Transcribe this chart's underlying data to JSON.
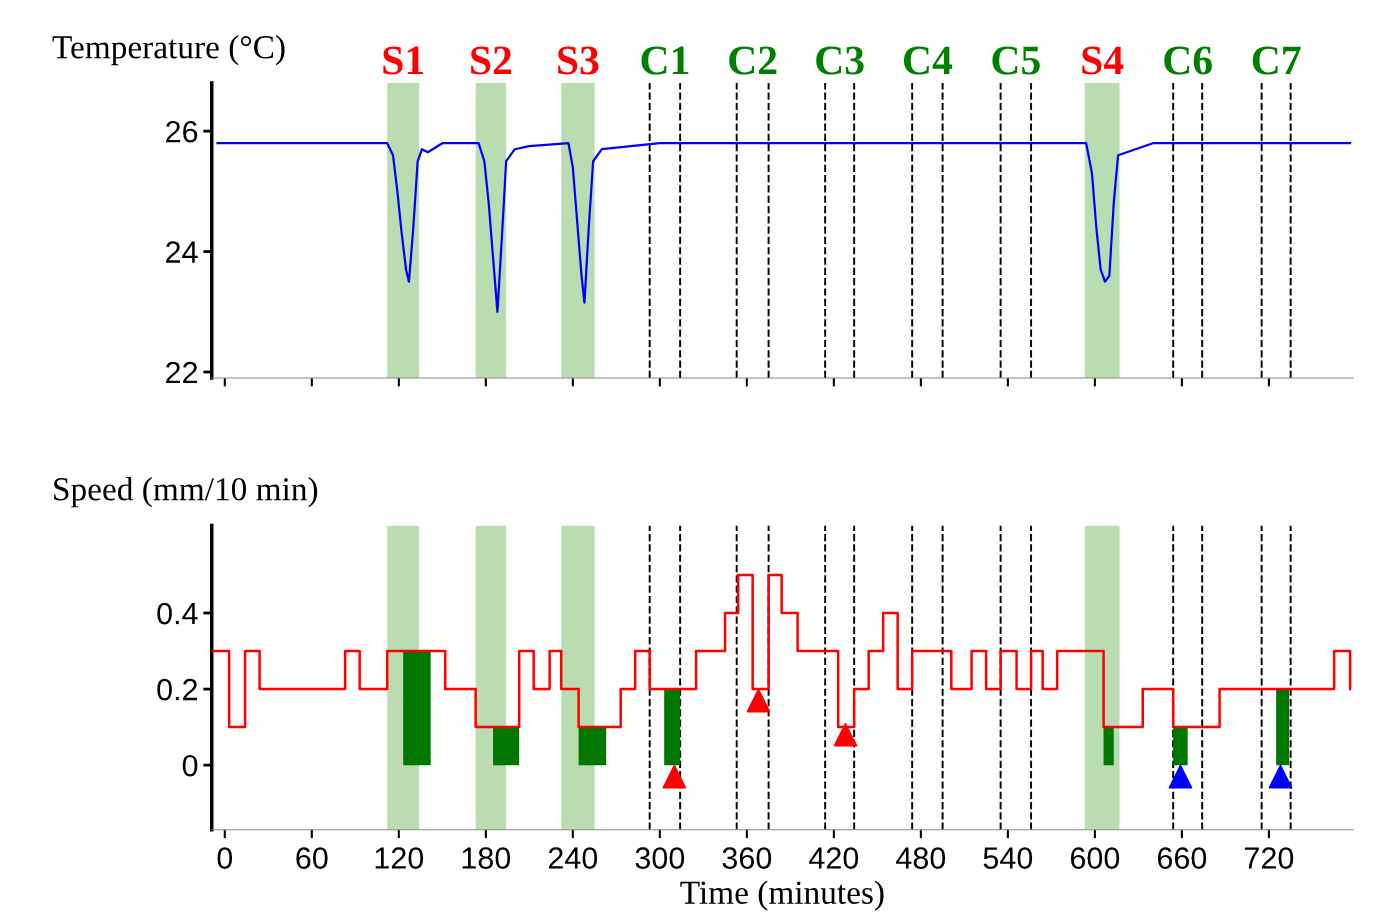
{
  "chart_data": [
    {
      "type": "line",
      "ylabel": "Temperature (°C)",
      "xlim": [
        -9,
        778
      ],
      "xticks": [
        0,
        60,
        120,
        180,
        240,
        300,
        360,
        420,
        480,
        540,
        600,
        660,
        720
      ],
      "ylim": [
        21.9,
        26.8
      ],
      "yticks": [
        22,
        24,
        26
      ],
      "tick_labels": "y",
      "legend": false,
      "series": [
        {
          "color": "#0000ff",
          "x": [
            -5,
            112,
            116,
            119,
            122,
            125,
            127,
            130,
            133,
            136,
            140,
            150,
            175,
            179,
            182,
            185,
            188,
            191,
            194,
            200,
            210,
            237,
            240,
            243,
            246,
            248,
            251,
            254,
            260,
            280,
            300,
            400,
            594,
            598,
            601,
            604,
            607,
            610,
            613,
            616,
            622,
            640,
            776
          ],
          "values": [
            25.8,
            25.8,
            25.6,
            25.0,
            24.3,
            23.7,
            23.5,
            24.4,
            25.5,
            25.7,
            25.65,
            25.8,
            25.8,
            25.5,
            24.8,
            23.9,
            23.0,
            24.2,
            25.5,
            25.7,
            25.75,
            25.8,
            25.4,
            24.5,
            23.6,
            23.15,
            24.4,
            25.5,
            25.7,
            25.75,
            25.8,
            25.8,
            25.8,
            25.3,
            24.4,
            23.7,
            23.5,
            23.6,
            24.8,
            25.6,
            25.65,
            25.8,
            25.8
          ]
        }
      ],
      "bands": [
        {
          "axis": "x",
          "from": 112,
          "to": 134,
          "label": "S1",
          "color": "#b9ddb1"
        },
        {
          "axis": "x",
          "from": 173,
          "to": 194,
          "label": "S2",
          "color": "#b9ddb1"
        },
        {
          "axis": "x",
          "from": 232,
          "to": 255,
          "label": "S3",
          "color": "#b9ddb1"
        },
        {
          "axis": "x",
          "from": 593,
          "to": 617,
          "label": "S4",
          "color": "#b9ddb1"
        }
      ],
      "ref_lines": [
        {
          "axis": "x",
          "value": 293,
          "label": "C1",
          "color": "#000000",
          "line_style": "dashed"
        },
        {
          "axis": "x",
          "value": 314,
          "color": "#000000",
          "line_style": "dashed"
        },
        {
          "axis": "x",
          "value": 353,
          "label": "C2",
          "color": "#000000",
          "line_style": "dashed"
        },
        {
          "axis": "x",
          "value": 375,
          "color": "#000000",
          "line_style": "dashed"
        },
        {
          "axis": "x",
          "value": 414,
          "label": "C3",
          "color": "#000000",
          "line_style": "dashed"
        },
        {
          "axis": "x",
          "value": 434,
          "color": "#000000",
          "line_style": "dashed"
        },
        {
          "axis": "x",
          "value": 474,
          "label": "C4",
          "color": "#000000",
          "line_style": "dashed"
        },
        {
          "axis": "x",
          "value": 495,
          "color": "#000000",
          "line_style": "dashed"
        },
        {
          "axis": "x",
          "value": 535,
          "label": "C5",
          "color": "#000000",
          "line_style": "dashed"
        },
        {
          "axis": "x",
          "value": 556,
          "color": "#000000",
          "line_style": "dashed"
        },
        {
          "axis": "x",
          "value": 654,
          "label": "C6",
          "color": "#000000",
          "line_style": "dashed"
        },
        {
          "axis": "x",
          "value": 674,
          "color": "#000000",
          "line_style": "dashed"
        },
        {
          "axis": "x",
          "value": 715,
          "label": "C7",
          "color": "#000000",
          "line_style": "dashed"
        },
        {
          "axis": "x",
          "value": 735,
          "color": "#000000",
          "line_style": "dashed"
        }
      ]
    },
    {
      "type": "step",
      "ylabel": "Speed (mm/10 min)",
      "xlabel": "Time (minutes)",
      "xlim": [
        -9,
        778
      ],
      "ylim": [
        -0.17,
        0.63
      ],
      "yticks": [
        0,
        0.2,
        0.4
      ],
      "xticks": [
        0,
        60,
        120,
        180,
        240,
        300,
        360,
        420,
        480,
        540,
        600,
        660,
        720
      ],
      "legend": false,
      "series": [
        {
          "color": "#ff0000",
          "x": [
            -9,
            3,
            14,
            24,
            83,
            93,
            112,
            152,
            173,
            185,
            203,
            213,
            224,
            232,
            244,
            263,
            273,
            283,
            293,
            325,
            345,
            354,
            364,
            375,
            384,
            395,
            423,
            434,
            444,
            454,
            464,
            474,
            501,
            515,
            525,
            535,
            546,
            556,
            564,
            574,
            595,
            606,
            613,
            633,
            654,
            664,
            686,
            765,
            776
          ],
          "values": [
            0.3,
            0.1,
            0.3,
            0.2,
            0.3,
            0.2,
            0.3,
            0.2,
            0.1,
            0.1,
            0.3,
            0.2,
            0.3,
            0.2,
            0.1,
            0.1,
            0.2,
            0.3,
            0.2,
            0.3,
            0.4,
            0.5,
            0.2,
            0.5,
            0.4,
            0.3,
            0.1,
            0.2,
            0.3,
            0.4,
            0.2,
            0.3,
            0.2,
            0.3,
            0.2,
            0.3,
            0.2,
            0.3,
            0.2,
            0.3,
            0.3,
            0.1,
            0.1,
            0.2,
            0.1,
            0.1,
            0.2,
            0.3,
            0.2
          ]
        },
        {
          "type": "area",
          "color": "#007700",
          "x": [
            123,
            142,
            null,
            185,
            203,
            null,
            244,
            263,
            null,
            303,
            314,
            null,
            606,
            613,
            null,
            654,
            664,
            null,
            725,
            734
          ],
          "values": [
            0.3,
            0.3,
            null,
            0.1,
            0.1,
            null,
            0.1,
            0.1,
            null,
            0.2,
            0.2,
            null,
            0.1,
            0.1,
            null,
            0.1,
            0.1,
            null,
            0.2,
            0.2
          ]
        },
        {
          "type": "scatter",
          "marker": "triangle",
          "color": "#ff0000",
          "x": [
            310,
            368,
            428
          ],
          "values": [
            -0.03,
            0.17,
            0.08
          ]
        },
        {
          "type": "scatter",
          "marker": "triangle",
          "color": "#0000ff",
          "x": [
            659,
            728
          ],
          "values": [
            -0.03,
            -0.03
          ]
        }
      ],
      "bands": [
        {
          "axis": "x",
          "from": 112,
          "to": 134,
          "color": "#b9ddb1"
        },
        {
          "axis": "x",
          "from": 173,
          "to": 194,
          "color": "#b9ddb1"
        },
        {
          "axis": "x",
          "from": 232,
          "to": 255,
          "color": "#b9ddb1"
        },
        {
          "axis": "x",
          "from": 593,
          "to": 617,
          "color": "#b9ddb1"
        }
      ],
      "ref_lines": [
        {
          "axis": "x",
          "value": 293,
          "color": "#000000",
          "line_style": "dashed"
        },
        {
          "axis": "x",
          "value": 314,
          "color": "#000000",
          "line_style": "dashed"
        },
        {
          "axis": "x",
          "value": 353,
          "color": "#000000",
          "line_style": "dashed"
        },
        {
          "axis": "x",
          "value": 375,
          "color": "#000000",
          "line_style": "dashed"
        },
        {
          "axis": "x",
          "value": 414,
          "color": "#000000",
          "line_style": "dashed"
        },
        {
          "axis": "x",
          "value": 434,
          "color": "#000000",
          "line_style": "dashed"
        },
        {
          "axis": "x",
          "value": 474,
          "color": "#000000",
          "line_style": "dashed"
        },
        {
          "axis": "x",
          "value": 495,
          "color": "#000000",
          "line_style": "dashed"
        },
        {
          "axis": "x",
          "value": 535,
          "color": "#000000",
          "line_style": "dashed"
        },
        {
          "axis": "x",
          "value": 556,
          "color": "#000000",
          "line_style": "dashed"
        },
        {
          "axis": "x",
          "value": 654,
          "color": "#000000",
          "line_style": "dashed"
        },
        {
          "axis": "x",
          "value": 674,
          "color": "#000000",
          "line_style": "dashed"
        },
        {
          "axis": "x",
          "value": 715,
          "color": "#000000",
          "line_style": "dashed"
        },
        {
          "axis": "x",
          "value": 735,
          "color": "#000000",
          "line_style": "dashed"
        }
      ]
    }
  ]
}
